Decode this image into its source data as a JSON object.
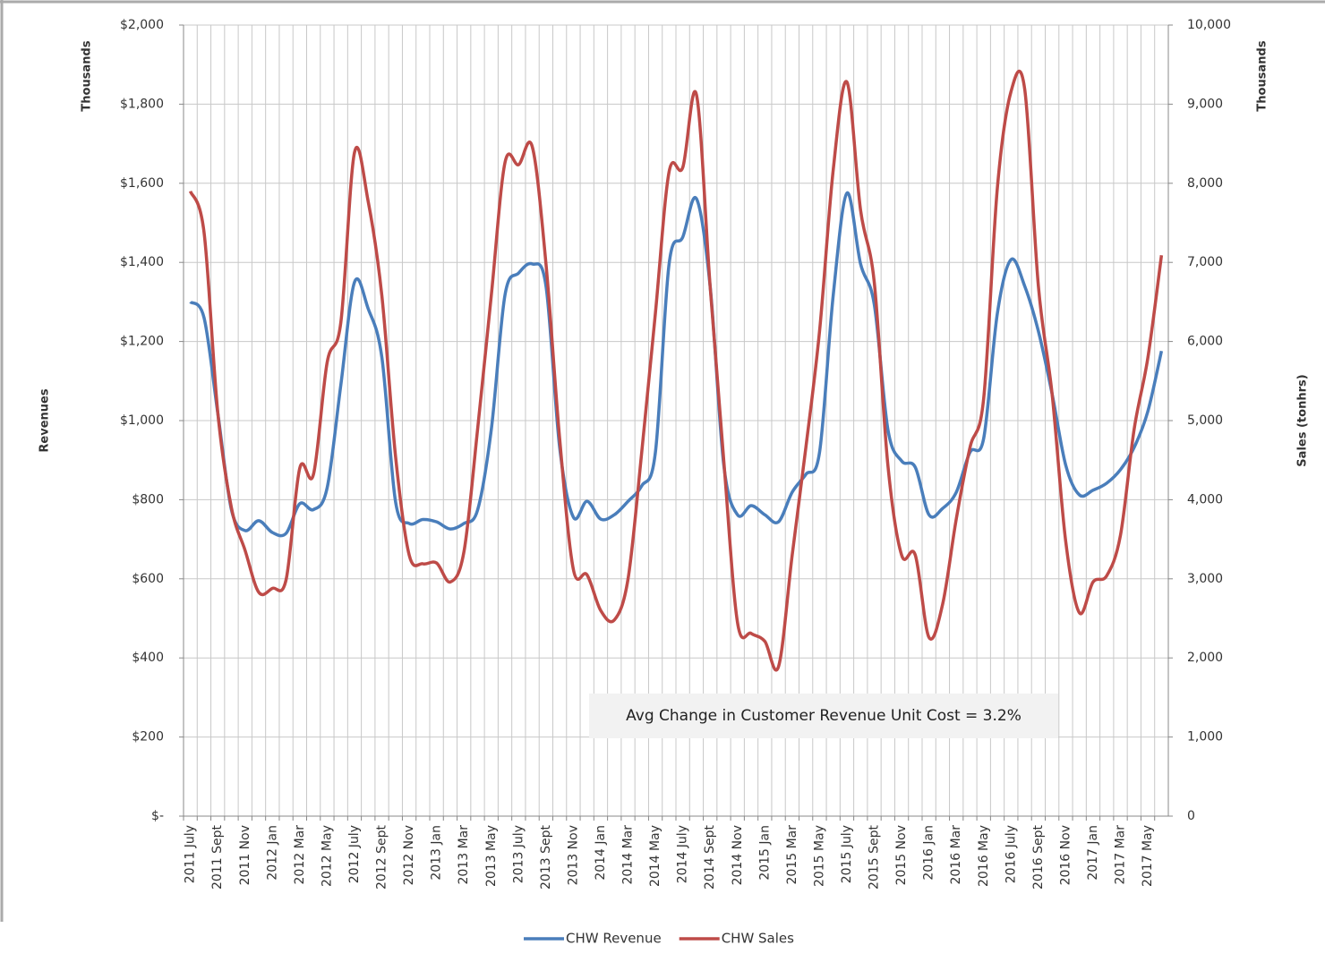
{
  "chart_data": {
    "type": "line",
    "y_unit_label": "Thousands",
    "y2_unit_label": "Thousands",
    "ylabel": "Revenues",
    "y2label": "Sales (tonhrs)",
    "annotation": "Avg Change in Customer Revenue Unit Cost = 3.2%",
    "grid": true,
    "smooth": true,
    "legend": "bottom",
    "categories": [
      "2011 July",
      null,
      "2011 Sept",
      null,
      "2011 Nov",
      null,
      "2012 Jan",
      null,
      "2012 Mar",
      null,
      "2012 May",
      null,
      "2012 July",
      null,
      "2012 Sept",
      null,
      "2012 Nov",
      null,
      "2013 Jan",
      null,
      "2013 Mar",
      null,
      "2013 May",
      null,
      "2013 July",
      null,
      "2013 Sept",
      null,
      "2013 Nov",
      null,
      "2014 Jan",
      null,
      "2014 Mar",
      null,
      "2014 May",
      null,
      "2014 July",
      null,
      "2014 Sept",
      null,
      "2014 Nov",
      null,
      "2015 Jan",
      null,
      "2015 Mar",
      null,
      "2015 May",
      null,
      "2015 July",
      null,
      "2015 Sept",
      null,
      "2015 Nov",
      null,
      "2016 Jan",
      null,
      "2016 Mar",
      null,
      "2016 May",
      null,
      "2016 July",
      null,
      "2016 Sept",
      null,
      "2016 Nov",
      null,
      "2017 Jan",
      null,
      "2017 Mar",
      null,
      "2017 May",
      null
    ],
    "series": [
      {
        "name": "CHW Revenue",
        "color": "#4a7ebb",
        "values": [
          1300,
          1260,
          1020,
          775,
          722,
          747,
          717,
          715,
          790,
          775,
          830,
          1090,
          1350,
          1283,
          1160,
          795,
          740,
          750,
          744,
          726,
          740,
          774,
          977,
          1317,
          1373,
          1396,
          1340,
          932,
          756,
          796,
          751,
          762,
          796,
          835,
          920,
          1396,
          1464,
          1561,
          1340,
          887,
          762,
          785,
          762,
          744,
          819,
          864,
          920,
          1317,
          1575,
          1396,
          1294,
          977,
          898,
          882,
          762,
          778,
          819,
          920,
          955,
          1271,
          1407,
          1340,
          1226,
          1068,
          887,
          812,
          824,
          842,
          876,
          932,
          1023,
          1176
        ]
      },
      {
        "name": "CHW Sales",
        "color": "#be4b48",
        "axis": "y2",
        "values": [
          7900,
          7380,
          5110,
          3900,
          3360,
          2830,
          2880,
          2990,
          4400,
          4320,
          5735,
          6240,
          8390,
          7770,
          6580,
          4550,
          3300,
          3190,
          3200,
          2960,
          3340,
          4890,
          6580,
          8260,
          8235,
          8460,
          6980,
          4770,
          3120,
          3050,
          2600,
          2480,
          3000,
          4600,
          6360,
          8145,
          8200,
          9120,
          6700,
          4490,
          2450,
          2310,
          2210,
          1890,
          3300,
          4660,
          6130,
          8170,
          9280,
          7660,
          6750,
          4430,
          3300,
          3300,
          2260,
          2680,
          3760,
          4660,
          5280,
          7940,
          9160,
          9190,
          6700,
          5340,
          3470,
          2570,
          2960,
          3040,
          3550,
          4890,
          5790,
          7090
        ]
      }
    ],
    "ylim": [
      0,
      2000
    ],
    "yticks": [
      {
        "value": 0,
        "label": "$-"
      },
      {
        "value": 200,
        "label": "$200"
      },
      {
        "value": 400,
        "label": "$400"
      },
      {
        "value": 600,
        "label": "$600"
      },
      {
        "value": 800,
        "label": "$800"
      },
      {
        "value": 1000,
        "label": "$1,000"
      },
      {
        "value": 1200,
        "label": "$1,200"
      },
      {
        "value": 1400,
        "label": "$1,400"
      },
      {
        "value": 1600,
        "label": "$1,600"
      },
      {
        "value": 1800,
        "label": "$1,800"
      },
      {
        "value": 2000,
        "label": "$2,000"
      }
    ],
    "y2lim": [
      0,
      10000
    ],
    "y2ticks": [
      0,
      {
        "value": 1000,
        "label": "1,000"
      },
      {
        "value": 2000,
        "label": "2,000"
      },
      {
        "value": 3000,
        "label": "3,000"
      },
      {
        "value": 4000,
        "label": "4,000"
      },
      {
        "value": 5000,
        "label": "5,000"
      },
      {
        "value": 6000,
        "label": "6,000"
      },
      {
        "value": 7000,
        "label": "7,000"
      },
      {
        "value": 8000,
        "label": "8,000"
      },
      {
        "value": 9000,
        "label": "9,000"
      },
      {
        "value": 10000,
        "label": "10,000"
      }
    ]
  }
}
